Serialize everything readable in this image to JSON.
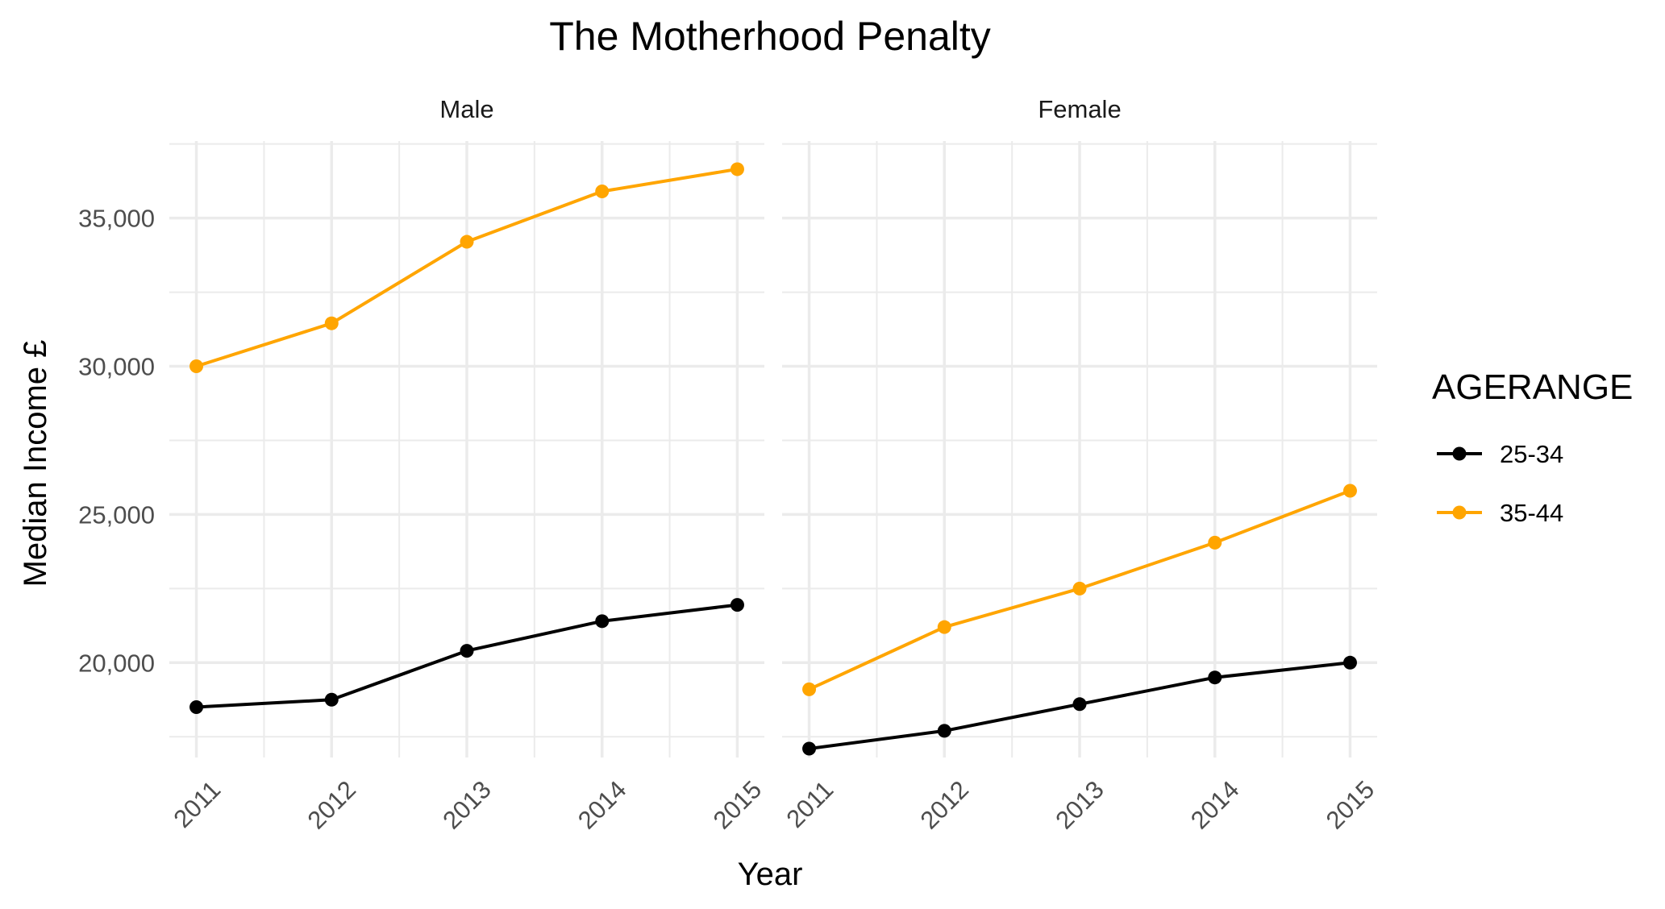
{
  "chart_data": {
    "type": "line",
    "title": "The Motherhood Penalty",
    "xlabel": "Year",
    "ylabel": "Median Income £",
    "x": [
      2011,
      2012,
      2013,
      2014,
      2015
    ],
    "x_tick_labels": [
      "2011",
      "2012",
      "2013",
      "2014",
      "2015"
    ],
    "y_ticks": [
      20000,
      25000,
      30000,
      35000
    ],
    "y_tick_labels": [
      "20,000",
      "25,000",
      "30,000",
      "35,000"
    ],
    "ylim": [
      16800,
      37600
    ],
    "xlim": [
      2010.8,
      2015.2
    ],
    "grid": true,
    "legend": {
      "title": "AGERANGE",
      "placement": "right",
      "entries": [
        {
          "label": "25-34",
          "color": "#000000"
        },
        {
          "label": "35-44",
          "color": "#ffa500"
        }
      ]
    },
    "panels": [
      {
        "label": "Male",
        "series": [
          {
            "name": "25-34",
            "color": "#000000",
            "values": [
              18500,
              18750,
              20400,
              21400,
              21950
            ]
          },
          {
            "name": "35-44",
            "color": "#ffa500",
            "values": [
              30000,
              31450,
              34200,
              35900,
              36650
            ]
          }
        ]
      },
      {
        "label": "Female",
        "series": [
          {
            "name": "25-34",
            "color": "#000000",
            "values": [
              17100,
              17700,
              18600,
              19500,
              20000
            ]
          },
          {
            "name": "35-44",
            "color": "#ffa500",
            "values": [
              19100,
              21200,
              22500,
              24050,
              25800
            ]
          }
        ]
      }
    ]
  }
}
